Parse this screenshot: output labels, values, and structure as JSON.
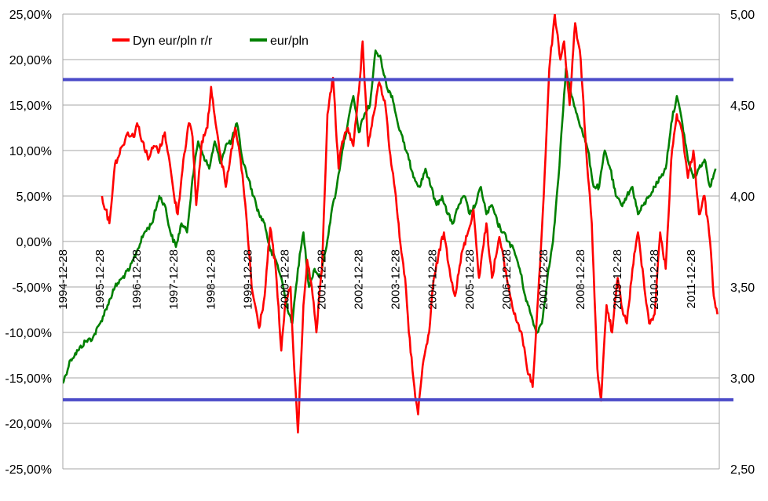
{
  "chart_data": {
    "type": "line",
    "grid": true,
    "legend": {
      "placement": "top-left"
    },
    "y_left": {
      "min": -25,
      "max": 25,
      "step": 5,
      "tick_labels": [
        "25,00%",
        "20,00%",
        "15,00%",
        "10,00%",
        "5,00%",
        "0,00%",
        "-5,00%",
        "-10,00%",
        "-15,00%",
        "-20,00%",
        "-25,00%"
      ]
    },
    "y_right": {
      "min": 2.5,
      "max": 5.0,
      "step": 0.5,
      "tick_labels": [
        "5,00",
        "4,50",
        "4,00",
        "3,50",
        "3,00",
        "2,50"
      ]
    },
    "x_axis": {
      "min": 1994.99,
      "max": 2012.75,
      "tick_labels": [
        "1994-12-28",
        "1995-12-28",
        "1996-12-28",
        "1997-12-28",
        "1998-12-28",
        "1999-12-28",
        "2000-12-28",
        "2001-12-28",
        "2002-12-28",
        "2003-12-28",
        "2004-12-28",
        "2005-12-28",
        "2006-12-28",
        "2007-12-28",
        "2008-12-28",
        "2009-12-28",
        "2010-12-28",
        "2011-12-28"
      ]
    },
    "reference_lines": [
      {
        "axis": "left",
        "value": 17.8,
        "color": "#4a4ac8"
      },
      {
        "axis": "left",
        "value": -17.4,
        "color": "#4a4ac8"
      }
    ],
    "series": [
      {
        "name": "Dyn eur/pln r/r",
        "axis": "left",
        "color": "#ff0000",
        "x": [
          1996.05,
          1996.15,
          1996.25,
          1996.4,
          1996.6,
          1996.75,
          1996.9,
          1997.0,
          1997.15,
          1997.3,
          1997.45,
          1997.6,
          1997.75,
          1997.85,
          1998.0,
          1998.1,
          1998.25,
          1998.4,
          1998.5,
          1998.6,
          1998.75,
          1998.9,
          1999.0,
          1999.2,
          1999.4,
          1999.5,
          1999.65,
          1999.8,
          1999.95,
          2000.1,
          2000.3,
          2000.45,
          2000.6,
          2000.75,
          2000.9,
          2001.0,
          2001.15,
          2001.25,
          2001.35,
          2001.5,
          2001.6,
          2001.75,
          2001.85,
          2002.0,
          2002.15,
          2002.3,
          2002.45,
          2002.55,
          2002.7,
          2002.85,
          2003.0,
          2003.1,
          2003.25,
          2003.4,
          2003.55,
          2003.7,
          2003.85,
          2004.0,
          2004.1,
          2004.25,
          2004.35,
          2004.5,
          2004.6,
          2004.75,
          2004.9,
          2005.0,
          2005.15,
          2005.3,
          2005.45,
          2005.6,
          2005.8,
          2005.95,
          2006.1,
          2006.25,
          2006.45,
          2006.6,
          2006.8,
          2007.0,
          2007.2,
          2007.4,
          2007.55,
          2007.7,
          2007.85,
          2008.0,
          2008.15,
          2008.3,
          2008.45,
          2008.55,
          2008.7,
          2008.85,
          2009.0,
          2009.15,
          2009.3,
          2009.45,
          2009.55,
          2009.7,
          2009.85,
          2010.0,
          2010.1,
          2010.25,
          2010.4,
          2010.55,
          2010.7,
          2010.85,
          2011.0,
          2011.15,
          2011.3,
          2011.45,
          2011.6,
          2011.75,
          2011.9,
          2012.05,
          2012.2,
          2012.35,
          2012.5,
          2012.6,
          2012.7
        ],
        "y": [
          5.0,
          3.5,
          2.0,
          8.5,
          10.5,
          12.0,
          11.5,
          13.0,
          11.0,
          9.0,
          10.5,
          10.0,
          12.0,
          9.5,
          5.0,
          3.0,
          9.0,
          13.0,
          11.5,
          4.0,
          11.0,
          12.5,
          17.0,
          11.0,
          6.0,
          8.5,
          12.5,
          9.0,
          3.0,
          -5.0,
          -9.5,
          -6.0,
          1.5,
          -3.0,
          -12.0,
          -7.0,
          -5.0,
          -14.0,
          -21.0,
          -7.0,
          -2.0,
          -6.0,
          -10.0,
          -3.0,
          14.0,
          18.0,
          8.0,
          11.0,
          12.5,
          10.5,
          16.5,
          22.0,
          10.5,
          14.0,
          17.5,
          15.5,
          9.5,
          5.0,
          0.5,
          -4.0,
          -10.0,
          -16.0,
          -19.0,
          -13.0,
          -10.0,
          -5.0,
          -1.5,
          1.0,
          -3.0,
          -6.0,
          -1.0,
          1.0,
          3.5,
          -4.0,
          2.0,
          -4.0,
          0.5,
          -4.0,
          -8.0,
          -10.0,
          -14.0,
          -16.0,
          -6.0,
          5.0,
          19.0,
          25.0,
          20.0,
          22.0,
          15.0,
          24.0,
          20.0,
          10.0,
          2.0,
          -14.0,
          -17.5,
          -7.0,
          -10.0,
          -4.0,
          -7.0,
          -9.0,
          -3.0,
          1.0,
          -4.0,
          -9.0,
          -8.0,
          1.0,
          -3.0,
          9.0,
          14.0,
          12.0,
          7.0,
          10.0,
          3.0,
          5.0,
          0.0,
          -6.0,
          -8.0
        ]
      },
      {
        "name": "eur/pln",
        "axis": "right",
        "color": "#008000",
        "x": [
          1994.99,
          1995.2,
          1995.4,
          1995.6,
          1995.8,
          1996.0,
          1996.2,
          1996.4,
          1996.6,
          1996.8,
          1997.0,
          1997.2,
          1997.4,
          1997.6,
          1997.75,
          1997.9,
          1998.05,
          1998.2,
          1998.35,
          1998.5,
          1998.65,
          1998.8,
          1998.95,
          1999.1,
          1999.25,
          1999.4,
          1999.55,
          1999.7,
          1999.85,
          2000.0,
          2000.15,
          2000.3,
          2000.45,
          2000.6,
          2000.75,
          2000.9,
          2001.05,
          2001.2,
          2001.35,
          2001.5,
          2001.65,
          2001.8,
          2001.95,
          2002.1,
          2002.25,
          2002.4,
          2002.55,
          2002.7,
          2002.85,
          2003.0,
          2003.15,
          2003.3,
          2003.45,
          2003.6,
          2003.75,
          2003.9,
          2004.05,
          2004.2,
          2004.35,
          2004.5,
          2004.65,
          2004.8,
          2004.95,
          2005.1,
          2005.25,
          2005.4,
          2005.55,
          2005.7,
          2005.85,
          2006.0,
          2006.15,
          2006.3,
          2006.45,
          2006.6,
          2006.75,
          2006.9,
          2007.05,
          2007.2,
          2007.35,
          2007.5,
          2007.65,
          2007.8,
          2007.95,
          2008.1,
          2008.25,
          2008.4,
          2008.5,
          2008.6,
          2008.75,
          2008.9,
          2009.05,
          2009.2,
          2009.35,
          2009.5,
          2009.65,
          2009.8,
          2009.95,
          2010.1,
          2010.25,
          2010.4,
          2010.55,
          2010.7,
          2010.85,
          2011.0,
          2011.15,
          2011.3,
          2011.45,
          2011.6,
          2011.75,
          2011.9,
          2012.05,
          2012.2,
          2012.35,
          2012.5,
          2012.65
        ],
        "y": [
          2.97,
          3.1,
          3.15,
          3.2,
          3.22,
          3.3,
          3.4,
          3.5,
          3.55,
          3.6,
          3.7,
          3.8,
          3.85,
          4.0,
          3.95,
          3.8,
          3.72,
          3.85,
          3.8,
          4.1,
          4.3,
          4.22,
          4.15,
          4.3,
          4.18,
          4.28,
          4.3,
          4.4,
          4.2,
          4.1,
          4.0,
          3.9,
          3.85,
          3.7,
          3.65,
          3.55,
          3.4,
          3.3,
          3.6,
          3.8,
          3.5,
          3.6,
          3.55,
          3.7,
          3.9,
          4.05,
          4.25,
          4.4,
          4.55,
          4.35,
          4.45,
          4.5,
          4.8,
          4.75,
          4.6,
          4.55,
          4.4,
          4.3,
          4.2,
          4.1,
          4.05,
          4.15,
          4.05,
          3.95,
          4.0,
          3.9,
          3.85,
          3.95,
          4.0,
          3.9,
          3.95,
          4.05,
          3.9,
          3.95,
          3.85,
          3.8,
          3.75,
          3.7,
          3.6,
          3.45,
          3.35,
          3.25,
          3.3,
          3.55,
          3.75,
          4.1,
          4.4,
          4.7,
          4.55,
          4.45,
          4.35,
          4.25,
          4.05,
          4.05,
          4.25,
          4.15,
          4.0,
          3.95,
          4.0,
          4.05,
          3.9,
          3.95,
          4.0,
          4.05,
          4.1,
          4.15,
          4.4,
          4.55,
          4.4,
          4.2,
          4.1,
          4.15,
          4.2,
          4.05,
          4.15
        ]
      }
    ]
  }
}
